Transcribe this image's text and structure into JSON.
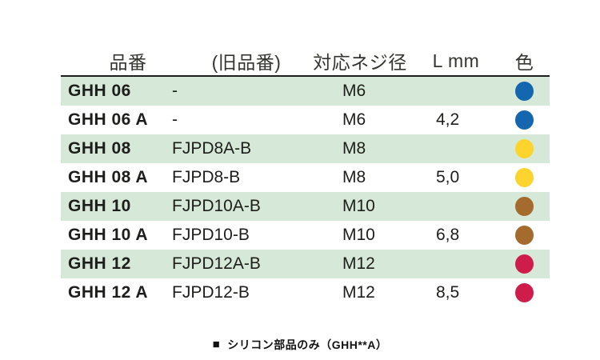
{
  "table": {
    "headers": [
      "品番",
      "(旧品番)",
      "対応ネジ径",
      "L mm",
      "色"
    ],
    "rows": [
      {
        "part_number": "GHH 06",
        "old_part_number": "-",
        "screw_size": "M6",
        "l_mm": "",
        "color_name": "blue",
        "highlighted": true
      },
      {
        "part_number": "GHH 06 A",
        "old_part_number": "-",
        "screw_size": "M6",
        "l_mm": "4,2",
        "color_name": "blue",
        "highlighted": false
      },
      {
        "part_number": "GHH 08",
        "old_part_number": "FJPD8A-B",
        "screw_size": "M8",
        "l_mm": "",
        "color_name": "yellow",
        "highlighted": true
      },
      {
        "part_number": "GHH 08 A",
        "old_part_number": "FJPD8-B",
        "screw_size": "M8",
        "l_mm": "5,0",
        "color_name": "yellow",
        "highlighted": false
      },
      {
        "part_number": "GHH 10",
        "old_part_number": "FJPD10A-B",
        "screw_size": "M10",
        "l_mm": "",
        "color_name": "brown",
        "highlighted": true
      },
      {
        "part_number": "GHH 10 A",
        "old_part_number": "FJPD10-B",
        "screw_size": "M10",
        "l_mm": "6,8",
        "color_name": "brown",
        "highlighted": false
      },
      {
        "part_number": "GHH 12",
        "old_part_number": "FJPD12A-B",
        "screw_size": "M12",
        "l_mm": "",
        "color_name": "red",
        "highlighted": true
      },
      {
        "part_number": "GHH 12 A",
        "old_part_number": "FJPD12-B",
        "screw_size": "M12",
        "l_mm": "8,5",
        "color_name": "red",
        "highlighted": false
      }
    ]
  },
  "colors": {
    "blue": "#1467ae",
    "yellow": "#fcd42d",
    "brown": "#a56b2e",
    "red": "#ce1d4b",
    "row_highlight": "#d6e9d8",
    "header_rule": "#1d1d1b",
    "text": "#1d1d1b"
  },
  "footnote": {
    "square_icon": "■",
    "text": "シリコン部品のみ（GHH**A）"
  }
}
